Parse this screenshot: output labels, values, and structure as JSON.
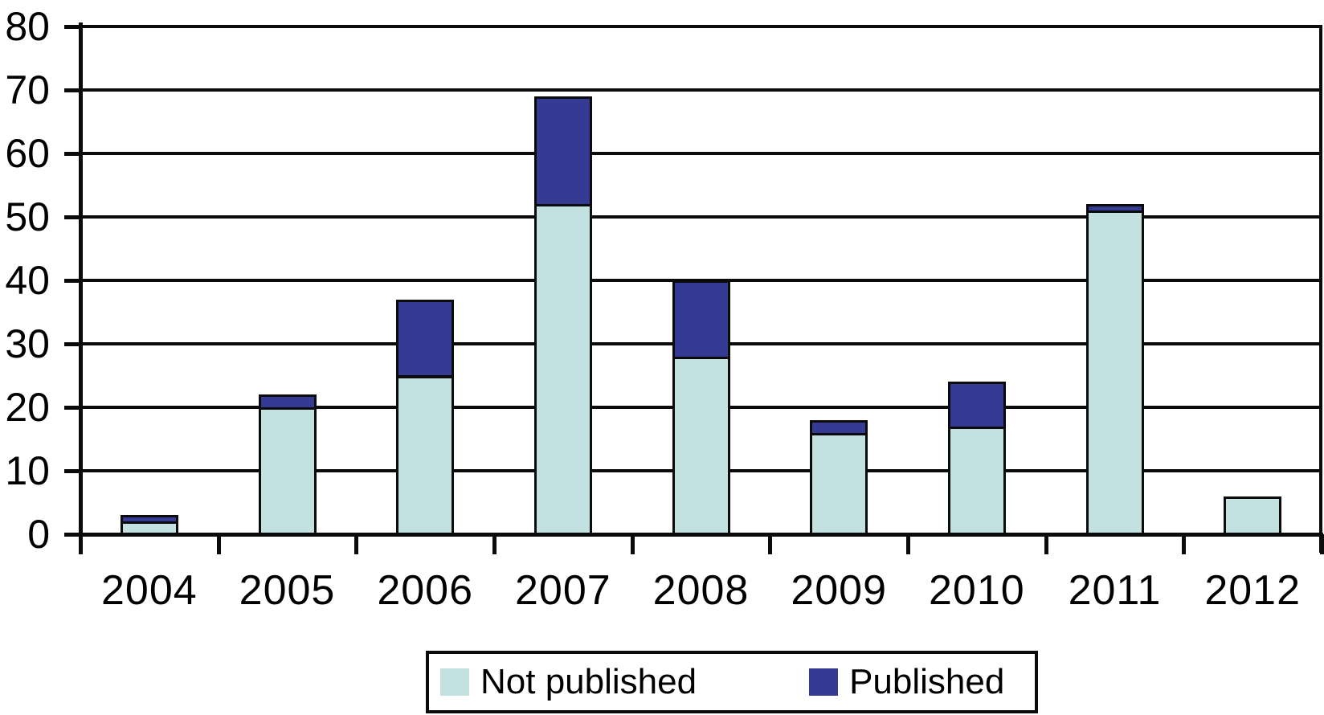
{
  "chart_data": {
    "type": "bar",
    "stacked": true,
    "title": "",
    "xlabel": "",
    "ylabel": "",
    "categories": [
      "2004",
      "2005",
      "2006",
      "2007",
      "2008",
      "2009",
      "2010",
      "2011",
      "2012"
    ],
    "series": [
      {
        "name": "Not published",
        "color": "#c4e1e2",
        "values": [
          2,
          20,
          25,
          52,
          28,
          16,
          17,
          51,
          6
        ]
      },
      {
        "name": "Published",
        "color": "#353a93",
        "values": [
          1,
          2,
          12,
          17,
          12,
          2,
          7,
          1,
          0
        ]
      }
    ],
    "totals": [
      3,
      22,
      37,
      69,
      40,
      18,
      24,
      52,
      6
    ],
    "ylim": [
      0,
      80
    ],
    "ytick_step": 10,
    "ytick_labels": [
      "0",
      "10",
      "20",
      "30",
      "40",
      "50",
      "60",
      "70",
      "80"
    ],
    "grid": "horizontal",
    "gridline_color": "#0b0b0b",
    "bar_border_color": "#0b0b0b",
    "axis_color": "#0b0b0b",
    "legend_position": "bottom-center"
  }
}
